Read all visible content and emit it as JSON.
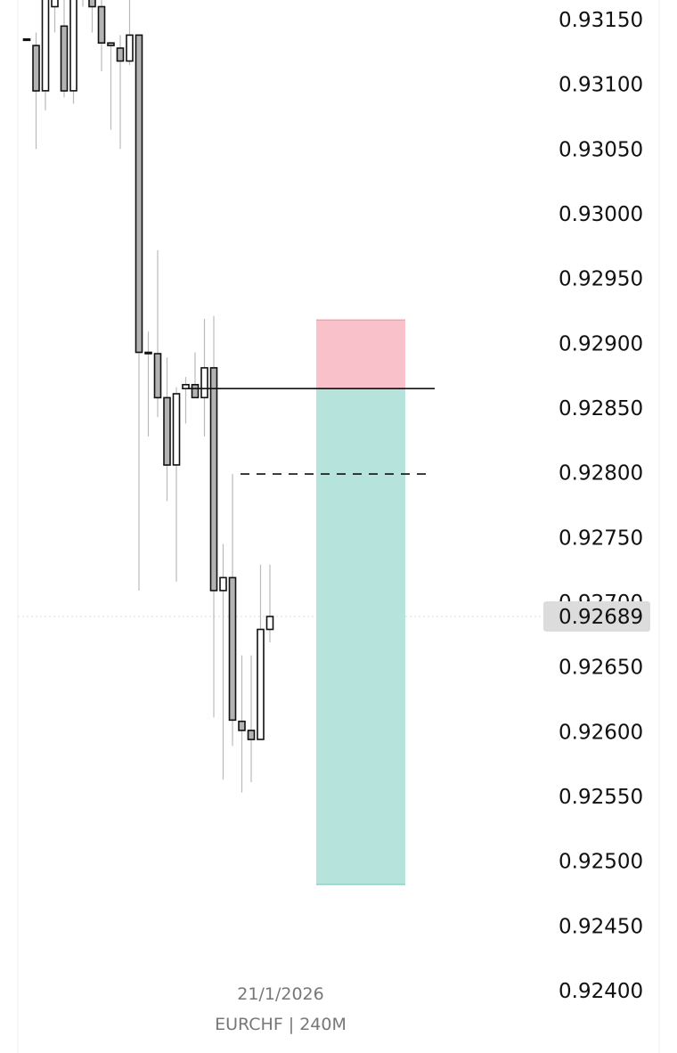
{
  "chart_data": {
    "type": "candlestick",
    "symbol_label": "EURCHF | 240M",
    "date_label": "21/1/2026",
    "ylim": [
      0.9238,
      0.93165
    ],
    "y_ticks": [
      "0.93150",
      "0.93100",
      "0.93050",
      "0.93000",
      "0.92950",
      "0.92900",
      "0.92850",
      "0.92800",
      "0.92750",
      "0.92700",
      "0.92650",
      "0.92600",
      "0.92550",
      "0.92500",
      "0.92450",
      "0.92400"
    ],
    "y_tick_values": [
      0.9315,
      0.931,
      0.9305,
      0.93,
      0.9295,
      0.929,
      0.9285,
      0.928,
      0.9275,
      0.927,
      0.9265,
      0.926,
      0.9255,
      0.925,
      0.9245,
      0.924
    ],
    "current_price": 0.92689,
    "current_price_label": "0.92689",
    "colors": {
      "candle_fill": "#b3b3b3",
      "candle_border": "#111111",
      "wick": "#bbbbbb",
      "stop_zone": "#f9c2ca",
      "target_zone": "#b7e3dd",
      "price_badge": "#dcdcdc"
    },
    "candles": [
      {
        "o": 0.93135,
        "h": 0.93135,
        "l": 0.93135,
        "c": 0.93135
      },
      {
        "o": 0.9313,
        "h": 0.9314,
        "l": 0.9305,
        "c": 0.93095
      },
      {
        "o": 0.93095,
        "h": 0.9318,
        "l": 0.9308,
        "c": 0.9318
      },
      {
        "o": 0.9316,
        "h": 0.9318,
        "l": 0.9314,
        "c": 0.9318
      },
      {
        "o": 0.93145,
        "h": 0.9318,
        "l": 0.9309,
        "c": 0.93095
      },
      {
        "o": 0.93095,
        "h": 0.9318,
        "l": 0.93085,
        "c": 0.9318
      },
      {
        "o": 0.9317,
        "h": 0.9318,
        "l": 0.9316,
        "c": 0.9318
      },
      {
        "o": 0.9318,
        "h": 0.9318,
        "l": 0.9314,
        "c": 0.9316
      },
      {
        "o": 0.9316,
        "h": 0.9318,
        "l": 0.9311,
        "c": 0.93132
      },
      {
        "o": 0.93132,
        "h": 0.93132,
        "l": 0.93065,
        "c": 0.9313
      },
      {
        "o": 0.93128,
        "h": 0.93138,
        "l": 0.9305,
        "c": 0.93118
      },
      {
        "o": 0.93118,
        "h": 0.9318,
        "l": 0.93115,
        "c": 0.93138
      },
      {
        "o": 0.93138,
        "h": 0.93138,
        "l": 0.92709,
        "c": 0.92893
      },
      {
        "o": 0.92893,
        "h": 0.92909,
        "l": 0.92828,
        "c": 0.92893
      },
      {
        "o": 0.92892,
        "h": 0.92972,
        "l": 0.92843,
        "c": 0.92858
      },
      {
        "o": 0.92858,
        "h": 0.92889,
        "l": 0.92778,
        "c": 0.92806
      },
      {
        "o": 0.92806,
        "h": 0.92866,
        "l": 0.92716,
        "c": 0.92861
      },
      {
        "o": 0.92865,
        "h": 0.92874,
        "l": 0.92838,
        "c": 0.92868
      },
      {
        "o": 0.92868,
        "h": 0.92893,
        "l": 0.92858,
        "c": 0.92858
      },
      {
        "o": 0.92858,
        "h": 0.92919,
        "l": 0.92828,
        "c": 0.92881
      },
      {
        "o": 0.92881,
        "h": 0.92921,
        "l": 0.92611,
        "c": 0.92709
      },
      {
        "o": 0.92709,
        "h": 0.92745,
        "l": 0.92563,
        "c": 0.92719
      },
      {
        "o": 0.92719,
        "h": 0.92799,
        "l": 0.92589,
        "c": 0.92609
      },
      {
        "o": 0.92608,
        "h": 0.92659,
        "l": 0.92553,
        "c": 0.92601
      },
      {
        "o": 0.92601,
        "h": 0.92659,
        "l": 0.92561,
        "c": 0.92594
      },
      {
        "o": 0.92594,
        "h": 0.92729,
        "l": 0.92594,
        "c": 0.92679
      },
      {
        "o": 0.92679,
        "h": 0.92729,
        "l": 0.92669,
        "c": 0.92689
      }
    ],
    "position": {
      "entry": 0.92865,
      "stop": 0.92918,
      "target": 0.92482,
      "pending_level": 0.92799
    }
  }
}
